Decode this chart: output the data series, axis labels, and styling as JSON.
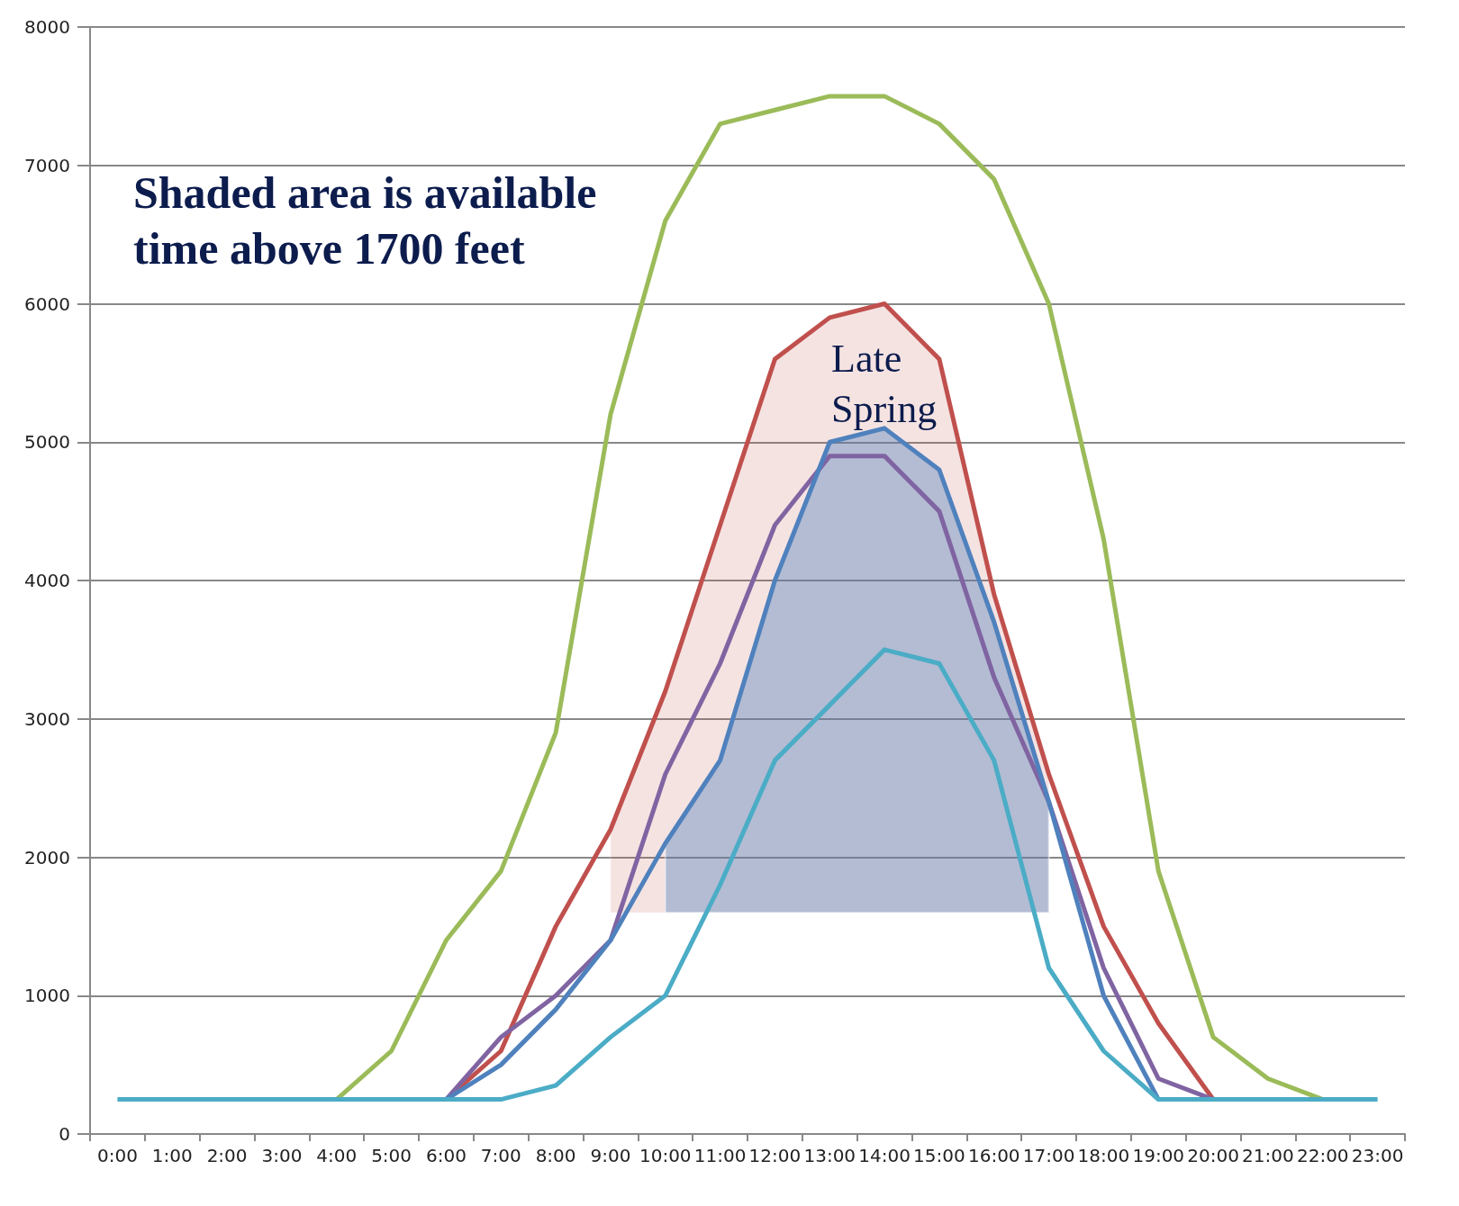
{
  "chart_data": {
    "type": "line",
    "categories": [
      "0:00",
      "1:00",
      "2:00",
      "3:00",
      "4:00",
      "5:00",
      "6:00",
      "7:00",
      "8:00",
      "9:00",
      "10:00",
      "11:00",
      "12:00",
      "13:00",
      "14:00",
      "15:00",
      "16:00",
      "17:00",
      "18:00",
      "19:00",
      "20:00",
      "21:00",
      "22:00",
      "23:00"
    ],
    "series": [
      {
        "color": "#9bbb59",
        "values": [
          null,
          null,
          null,
          null,
          250,
          600,
          1400,
          1900,
          2900,
          5200,
          6600,
          7300,
          7400,
          7500,
          7500,
          7300,
          6900,
          6000,
          4300,
          1900,
          700,
          400,
          250,
          null
        ]
      },
      {
        "color": "#c0504d",
        "values": [
          null,
          null,
          null,
          null,
          null,
          null,
          250,
          600,
          1500,
          2200,
          3200,
          4400,
          5600,
          5900,
          6000,
          5600,
          3900,
          2600,
          1500,
          800,
          250,
          null,
          null,
          null
        ],
        "lower": [
          null,
          null,
          null,
          null,
          null,
          null,
          null,
          null,
          null,
          1600,
          1600,
          1600,
          1600,
          1600,
          1600,
          1600,
          1600,
          1600,
          null,
          null,
          null,
          null,
          null,
          null
        ],
        "upper": [
          null,
          null,
          null,
          null,
          null,
          null,
          null,
          null,
          null,
          2200,
          3200,
          4400,
          5600,
          5900,
          6000,
          5600,
          3900,
          2600,
          null,
          null,
          null,
          null,
          null,
          null
        ]
      },
      {
        "color": "#8064a2",
        "values": [
          null,
          null,
          null,
          null,
          null,
          null,
          250,
          700,
          1000,
          1400,
          2600,
          3400,
          4400,
          4900,
          4900,
          4500,
          3300,
          2400,
          1200,
          400,
          250,
          null,
          null,
          null
        ]
      },
      {
        "color": "#4f81bd",
        "values": [
          null,
          null,
          null,
          null,
          null,
          null,
          250,
          500,
          900,
          1400,
          2100,
          2700,
          4000,
          5000,
          5100,
          4800,
          3700,
          2400,
          1000,
          250,
          null,
          null,
          null,
          null
        ],
        "lower": [
          null,
          null,
          null,
          null,
          null,
          null,
          null,
          null,
          null,
          null,
          1600,
          1600,
          1600,
          1600,
          1600,
          1600,
          1600,
          1600,
          null,
          null,
          null,
          null,
          null,
          null
        ],
        "upper": [
          null,
          null,
          null,
          null,
          null,
          null,
          null,
          null,
          null,
          null,
          2100,
          2700,
          4000,
          5000,
          5100,
          4800,
          3700,
          2400,
          null,
          null,
          null,
          null,
          null,
          null
        ]
      },
      {
        "color": "#4bacc6",
        "values": [
          250,
          250,
          250,
          250,
          250,
          250,
          250,
          250,
          350,
          700,
          1000,
          1800,
          2700,
          3100,
          3500,
          3400,
          2700,
          1200,
          600,
          250,
          250,
          250,
          250,
          250
        ]
      }
    ],
    "ylim": [
      0,
      8000
    ],
    "yticks": [
      0,
      1000,
      2000,
      3000,
      4000,
      5000,
      6000,
      7000,
      8000
    ],
    "grid": "y",
    "marker": "none",
    "line_style": "solid",
    "annotations": [
      "Shaded area is available\ntime above 1700 feet",
      "Late\nSpring"
    ]
  }
}
